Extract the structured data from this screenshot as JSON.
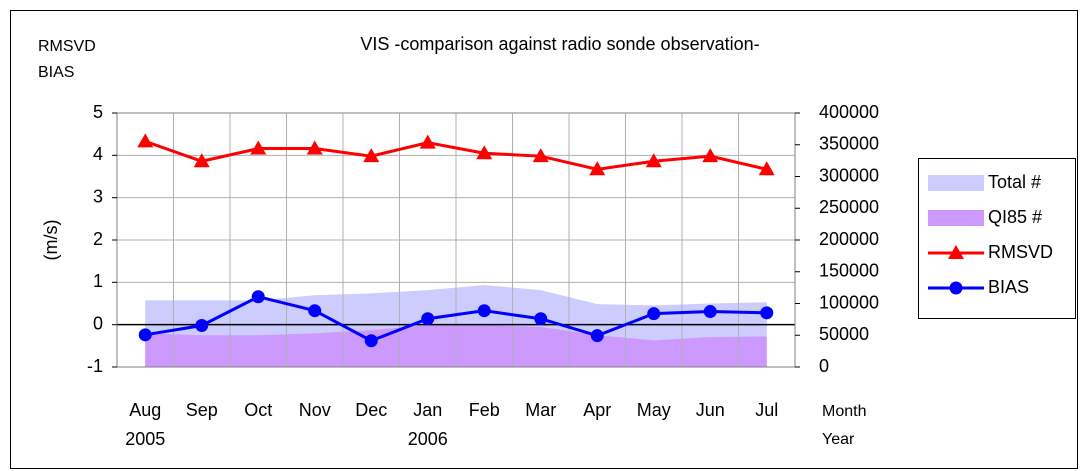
{
  "chart_data": {
    "type": "line",
    "title": "VIS -comparison against radio sonde observation-",
    "ylabel_lines": [
      "RMSVD",
      "BIAS"
    ],
    "ylabel": "(m/s)",
    "xlabel": "Month",
    "xlabel2": "Year",
    "categories": [
      "Aug",
      "Sep",
      "Oct",
      "Nov",
      "Dec",
      "Jan",
      "Feb",
      "Mar",
      "Apr",
      "May",
      "Jun",
      "Jul"
    ],
    "category_years": [
      "2005",
      null,
      null,
      null,
      null,
      "2006",
      null,
      null,
      null,
      null,
      null,
      null
    ],
    "ylim": [
      -1,
      5
    ],
    "yticks": [
      -1,
      0,
      1,
      2,
      3,
      4,
      5
    ],
    "y2lim": [
      0,
      400000
    ],
    "y2ticks": [
      0,
      50000,
      100000,
      150000,
      200000,
      250000,
      300000,
      350000,
      400000
    ],
    "grid": true,
    "legend": "right",
    "series": [
      {
        "name": "Total #",
        "kind": "area",
        "axis": "y2",
        "color": "#ccccff",
        "values": [
          105000,
          105000,
          105000,
          113000,
          116000,
          121000,
          129000,
          121000,
          99000,
          97000,
          100000,
          102000
        ]
      },
      {
        "name": "QI85 #",
        "kind": "area",
        "axis": "y2",
        "color": "#cc99ff",
        "values": [
          53000,
          50000,
          50000,
          53000,
          58000,
          66000,
          66000,
          63000,
          50000,
          42000,
          47000,
          48000
        ]
      },
      {
        "name": "RMSVD",
        "kind": "line",
        "marker": "triangle",
        "color": "#ff0000",
        "values": [
          4.33,
          3.86,
          4.16,
          4.16,
          3.98,
          4.3,
          4.05,
          3.98,
          3.67,
          3.86,
          3.98,
          3.67
        ]
      },
      {
        "name": "BIAS",
        "kind": "line",
        "marker": "circle",
        "color": "#0000ff",
        "values": [
          -0.24,
          -0.02,
          0.66,
          0.33,
          -0.38,
          0.14,
          0.33,
          0.14,
          -0.26,
          0.26,
          0.31,
          0.28
        ]
      }
    ]
  }
}
